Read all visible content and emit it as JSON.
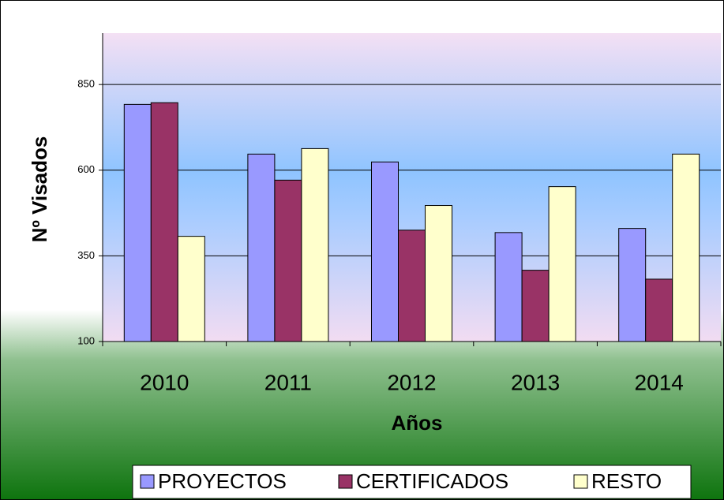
{
  "chart_data": {
    "type": "bar",
    "x_label": "Años",
    "y_label": "Nº Visados",
    "categories": [
      "2010",
      "2011",
      "2012",
      "2013",
      "2014"
    ],
    "series": [
      {
        "name": "PROYECTOS",
        "color": "#9999ff",
        "values": [
          792,
          647,
          624,
          418,
          430
        ]
      },
      {
        "name": "CERTIFICADOS",
        "color": "#993366",
        "values": [
          797,
          571,
          425,
          308,
          282
        ]
      },
      {
        "name": "RESTO",
        "color": "#ffffcc",
        "values": [
          407,
          663,
          497,
          552,
          647
        ]
      }
    ],
    "ylim": [
      100,
      1000
    ],
    "yticks": [
      100,
      350,
      600,
      850
    ],
    "grid": true,
    "legend": "bottom"
  }
}
